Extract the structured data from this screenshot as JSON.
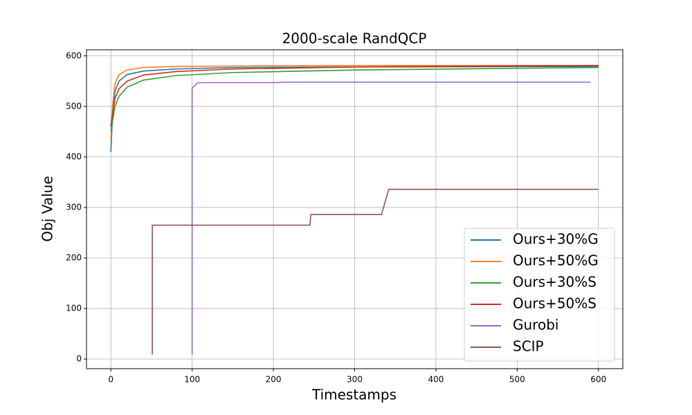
{
  "chart_data": {
    "type": "line",
    "title": "2000-scale RandQCP",
    "x_label": "Timestamps",
    "y_label": "Obj Value",
    "xlim": [
      -30,
      630
    ],
    "ylim": [
      -19,
      612
    ],
    "xticks": [
      0,
      100,
      200,
      300,
      400,
      500,
      600
    ],
    "yticks": [
      0,
      100,
      200,
      300,
      400,
      500,
      600
    ],
    "grid": true,
    "legend": "lower right",
    "series": [
      {
        "name": "Ours+30%G",
        "color": "#1f77b4",
        "x": [
          0,
          2,
          5,
          10,
          20,
          40,
          80,
          150,
          300,
          600
        ],
        "values": [
          410,
          480,
          530,
          550,
          563,
          570,
          574,
          577,
          578,
          579
        ]
      },
      {
        "name": "Ours+50%G",
        "color": "#ff7f0e",
        "x": [
          0,
          2,
          5,
          10,
          20,
          40,
          80,
          150,
          300,
          600
        ],
        "values": [
          435,
          500,
          545,
          563,
          572,
          577,
          579,
          580,
          581,
          581
        ]
      },
      {
        "name": "Ours+30%S",
        "color": "#2ca02c",
        "x": [
          0,
          2,
          5,
          10,
          20,
          40,
          80,
          150,
          300,
          600
        ],
        "values": [
          450,
          470,
          500,
          520,
          538,
          552,
          561,
          567,
          572,
          577
        ]
      },
      {
        "name": "Ours+50%S",
        "color": "#d62728",
        "x": [
          0,
          2,
          5,
          10,
          20,
          40,
          80,
          150,
          300,
          600
        ],
        "values": [
          460,
          485,
          515,
          535,
          550,
          562,
          569,
          574,
          578,
          581
        ]
      },
      {
        "name": "Gurobi",
        "color": "#9467bd",
        "x": [
          100,
          100,
          107,
          207,
          208,
          590
        ],
        "values": [
          9,
          536,
          547,
          547,
          548,
          548
        ]
      },
      {
        "name": "SCIP",
        "color": "#8c564b",
        "x": [
          51,
          51,
          245,
          246,
          333,
          342,
          600
        ],
        "values": [
          9,
          265,
          265,
          286,
          286,
          336,
          336
        ]
      }
    ]
  }
}
